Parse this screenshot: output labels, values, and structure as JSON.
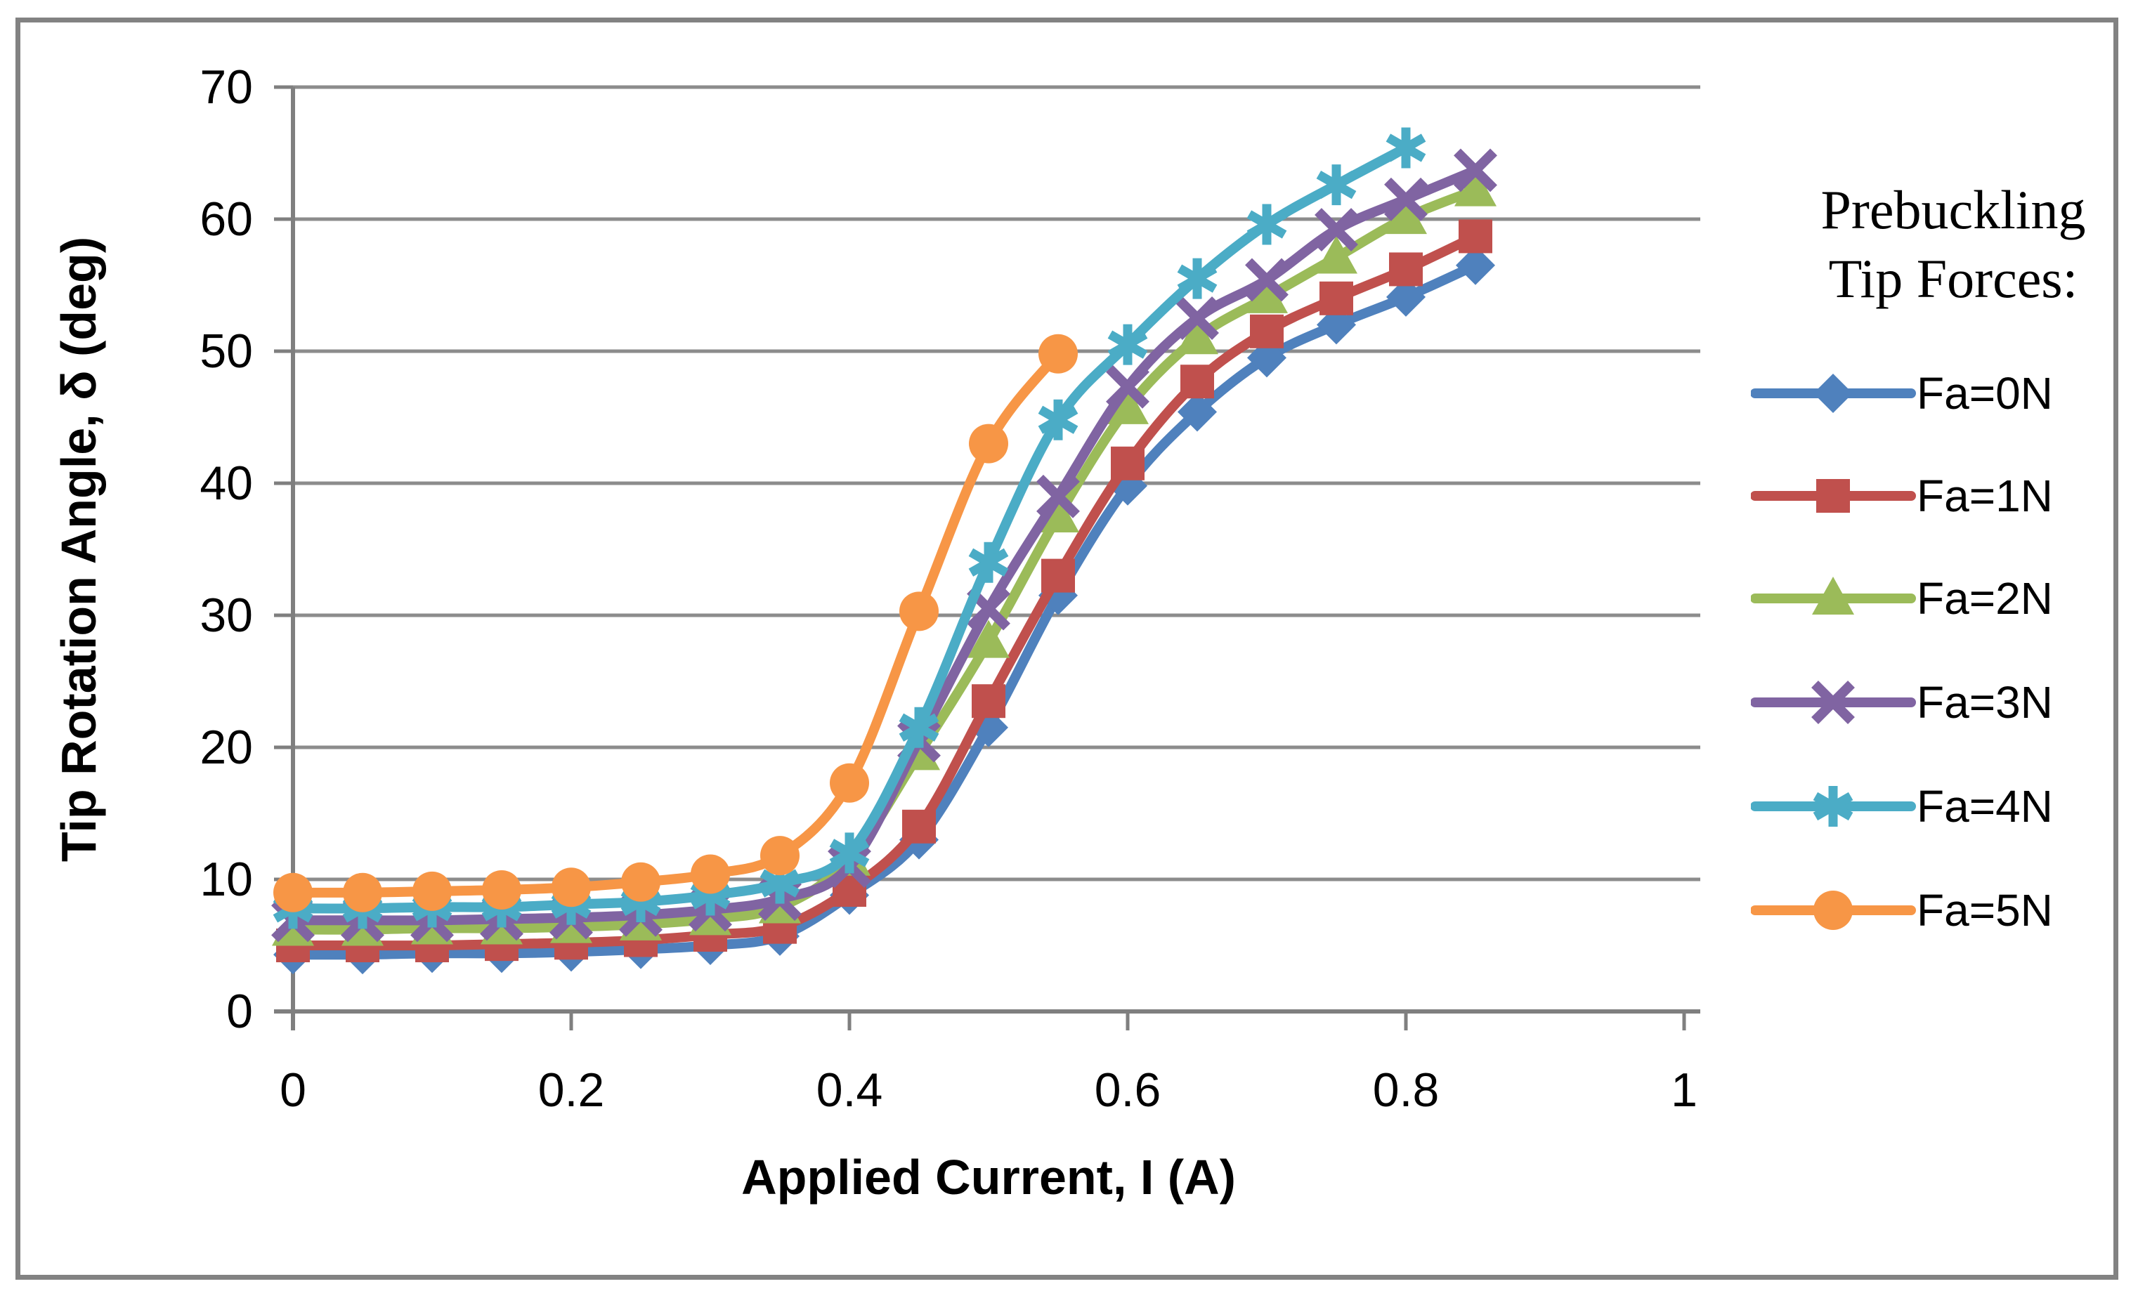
{
  "chart_data": {
    "type": "line",
    "title": "",
    "xlabel": "Applied Current, I (A)",
    "ylabel": "Tip Rotation Angle, δ (deg)",
    "xlim": [
      0,
      1
    ],
    "ylim": [
      0,
      70
    ],
    "x_ticks": [
      0,
      0.2,
      0.4,
      0.6,
      0.8,
      1
    ],
    "x_tick_labels": [
      "0",
      "0.2",
      "0.4",
      "0.6",
      "0.8",
      "1"
    ],
    "y_ticks": [
      0,
      10,
      20,
      30,
      40,
      50,
      60,
      70
    ],
    "y_tick_labels": [
      "0",
      "10",
      "20",
      "30",
      "40",
      "50",
      "60",
      "70"
    ],
    "grid": "horizontal-gridlines-on",
    "legend_position": "right",
    "legend_title": [
      "Prebuckling",
      "Tip Forces:"
    ],
    "colors": {
      "gridline": "#8C8C8C",
      "axis": "#7F7F7F",
      "frame": "#828282",
      "text": "#000000"
    },
    "series": [
      {
        "name": "Fa=0N",
        "color": "#4F81BD",
        "marker": "diamond",
        "x": [
          0,
          0.05,
          0.1,
          0.15,
          0.2,
          0.25,
          0.3,
          0.35,
          0.4,
          0.45,
          0.5,
          0.55,
          0.6,
          0.65,
          0.7,
          0.75,
          0.8,
          0.85
        ],
        "y": [
          4.3,
          4.3,
          4.4,
          4.4,
          4.5,
          4.7,
          5.0,
          5.7,
          8.8,
          13.0,
          21.5,
          31.5,
          39.8,
          45.4,
          49.5,
          52.0,
          54.1,
          56.5
        ]
      },
      {
        "name": "Fa=1N",
        "color": "#C0504D",
        "marker": "square",
        "x": [
          0,
          0.05,
          0.1,
          0.15,
          0.2,
          0.25,
          0.3,
          0.35,
          0.4,
          0.45,
          0.5,
          0.55,
          0.6,
          0.65,
          0.7,
          0.75,
          0.8,
          0.85
        ],
        "y": [
          5.0,
          5.0,
          5.0,
          5.1,
          5.2,
          5.4,
          5.8,
          6.4,
          9.2,
          14.0,
          23.5,
          33.0,
          41.5,
          47.7,
          51.5,
          54.0,
          56.2,
          58.7
        ]
      },
      {
        "name": "Fa=2N",
        "color": "#9BBB59",
        "marker": "triangle",
        "x": [
          0,
          0.05,
          0.1,
          0.15,
          0.2,
          0.25,
          0.3,
          0.35,
          0.4,
          0.45,
          0.5,
          0.55,
          0.6,
          0.65,
          0.7,
          0.75,
          0.8,
          0.85
        ],
        "y": [
          6.2,
          6.2,
          6.3,
          6.3,
          6.4,
          6.6,
          7.0,
          7.9,
          11.5,
          19.5,
          28.0,
          37.5,
          45.7,
          51.0,
          54.1,
          57.1,
          60.1,
          62.2
        ]
      },
      {
        "name": "Fa=3N",
        "color": "#8064A2",
        "marker": "x",
        "x": [
          0,
          0.05,
          0.1,
          0.15,
          0.2,
          0.25,
          0.3,
          0.35,
          0.4,
          0.45,
          0.5,
          0.55,
          0.6,
          0.65,
          0.7,
          0.75,
          0.8,
          0.85
        ],
        "y": [
          6.9,
          6.9,
          6.9,
          7.0,
          7.1,
          7.3,
          7.7,
          8.5,
          11.0,
          20.5,
          30.5,
          39.0,
          47.3,
          52.5,
          55.4,
          59.2,
          61.5,
          63.7
        ]
      },
      {
        "name": "Fa=4N",
        "color": "#4BACC6",
        "marker": "asterisk",
        "x": [
          0,
          0.05,
          0.1,
          0.15,
          0.2,
          0.25,
          0.3,
          0.35,
          0.4,
          0.45,
          0.5,
          0.55,
          0.6,
          0.65,
          0.7,
          0.75,
          0.8
        ],
        "y": [
          7.8,
          7.8,
          7.9,
          7.9,
          8.1,
          8.3,
          8.8,
          9.7,
          12.0,
          21.5,
          34.0,
          44.8,
          50.5,
          55.5,
          59.6,
          62.6,
          65.4
        ]
      },
      {
        "name": "Fa=5N",
        "color": "#F79646",
        "marker": "circle",
        "x": [
          0,
          0.05,
          0.1,
          0.15,
          0.2,
          0.25,
          0.3,
          0.35,
          0.4,
          0.45,
          0.5,
          0.55
        ],
        "y": [
          9.0,
          9.0,
          9.1,
          9.2,
          9.4,
          9.8,
          10.4,
          11.8,
          17.3,
          30.3,
          43.0,
          49.8
        ]
      }
    ]
  }
}
